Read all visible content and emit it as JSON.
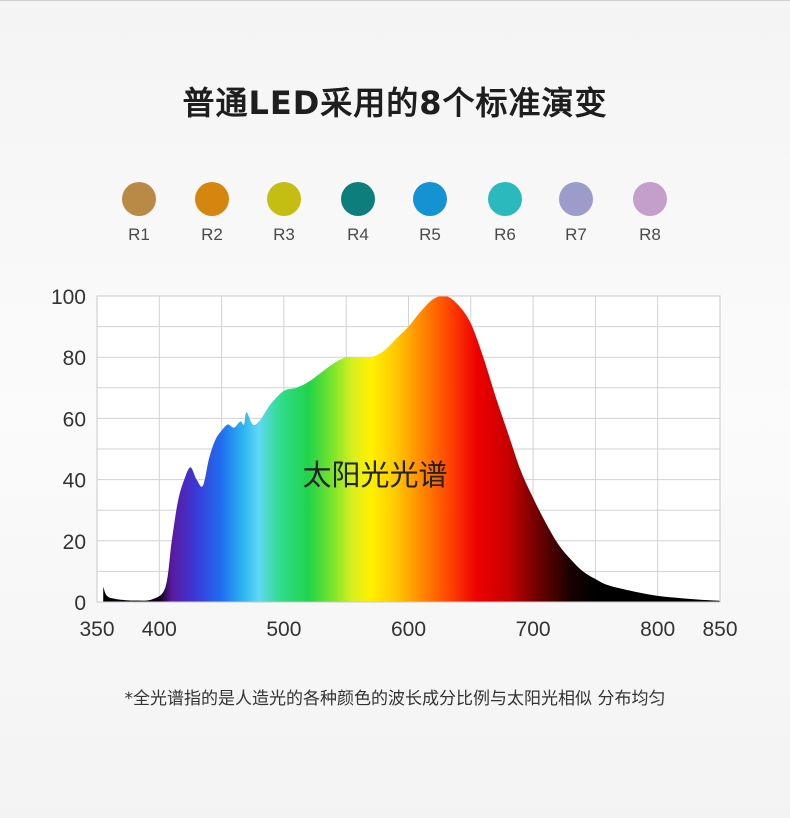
{
  "title": "普通LED采用的8个标准演变",
  "swatches": [
    {
      "label": "R1",
      "color": "#b98a46"
    },
    {
      "label": "R2",
      "color": "#d4860f"
    },
    {
      "label": "R3",
      "color": "#c4bd12"
    },
    {
      "label": "R4",
      "color": "#0d7e7c"
    },
    {
      "label": "R5",
      "color": "#1492d2"
    },
    {
      "label": "R6",
      "color": "#2bb9bd"
    },
    {
      "label": "R7",
      "color": "#9c9ccb"
    },
    {
      "label": "R8",
      "color": "#c49fcb"
    }
  ],
  "chart_data": {
    "type": "area",
    "annotation": "太阳光光谱",
    "xlim": [
      350,
      850
    ],
    "ylim": [
      0,
      100
    ],
    "x_ticks": [
      350,
      400,
      500,
      600,
      700,
      800,
      850
    ],
    "y_ticks": [
      0,
      20,
      40,
      60,
      80,
      100
    ],
    "grid": true,
    "series": [
      {
        "x": [
          355,
          358,
          365,
          380,
          395,
          405,
          410,
          415,
          420,
          425,
          430,
          435,
          440,
          445,
          450,
          455,
          460,
          465,
          468,
          470,
          475,
          480,
          485,
          490,
          500,
          510,
          520,
          530,
          540,
          550,
          560,
          570,
          580,
          590,
          600,
          610,
          620,
          630,
          640,
          650,
          660,
          670,
          680,
          690,
          700,
          710,
          720,
          730,
          740,
          750,
          760,
          780,
          800,
          820,
          840,
          850
        ],
        "y": [
          5,
          2,
          1,
          0.5,
          1,
          5,
          20,
          33,
          40,
          44,
          40,
          38,
          47,
          53,
          56,
          58,
          57,
          59,
          58,
          62,
          58,
          59,
          62,
          65,
          69,
          70,
          72,
          75,
          78,
          80,
          80,
          80,
          82,
          86,
          90,
          95,
          99,
          100,
          97,
          91,
          80,
          67,
          55,
          43,
          34,
          26,
          19,
          14,
          10,
          7.5,
          5.5,
          3.5,
          2,
          1.2,
          0.6,
          0.4
        ]
      }
    ]
  },
  "footnote": "*全光谱指的是人造光的各种颜色的波长成分比例与太阳光相似 分布均匀"
}
